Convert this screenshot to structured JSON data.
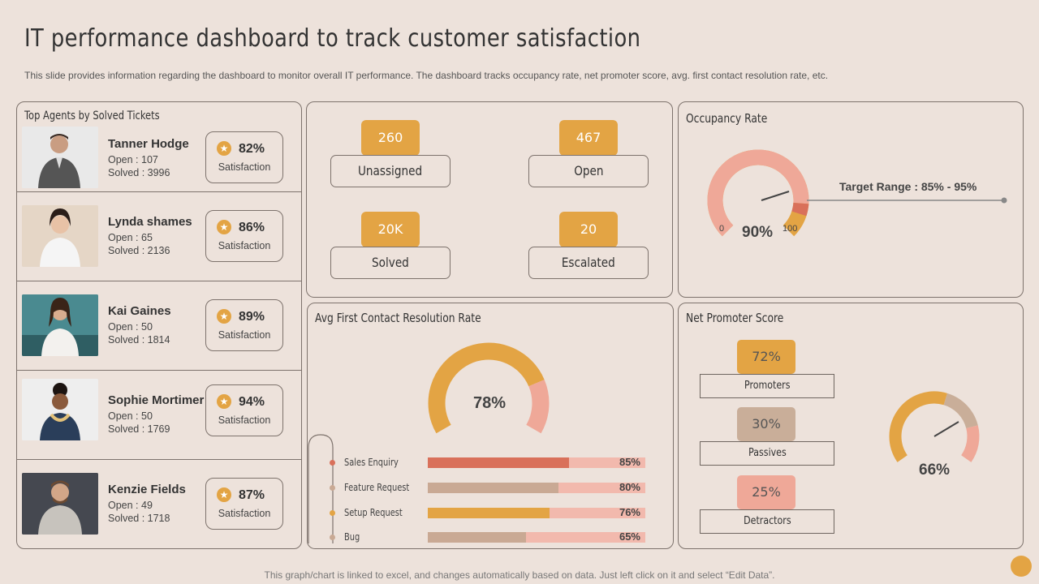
{
  "header": {
    "title": "IT performance dashboard to track customer satisfaction",
    "subtitle": "This slide provides information regarding the dashboard to monitor overall IT performance. The dashboard tracks occupancy rate, net promoter score, avg. first contact resolution rate, etc."
  },
  "agents": {
    "title": "Top Agents  by Solved Tickets",
    "satisfaction_label": "Satisfaction",
    "items": [
      {
        "name": "Tanner Hodge",
        "open": "Open  : 107",
        "solved": "Solved  : 3996",
        "satisfaction": "82%"
      },
      {
        "name": "Lynda shames",
        "open": "Open  : 65",
        "solved": "Solved  : 2136",
        "satisfaction": "86%"
      },
      {
        "name": "Kai Gaines",
        "open": "Open  : 50",
        "solved": "Solved  : 1814",
        "satisfaction": "89%"
      },
      {
        "name": "Sophie Mortimer",
        "open": "Open  : 50",
        "solved": "Solved  : 1769",
        "satisfaction": "94%"
      },
      {
        "name": "Kenzie Fields",
        "open": "Open  : 49",
        "solved": "Solved  : 1718",
        "satisfaction": "87%"
      }
    ]
  },
  "tickets": {
    "unassigned": {
      "value": "260",
      "label": "Unassigned"
    },
    "open": {
      "value": "467",
      "label": "Open"
    },
    "solved": {
      "value": "20K",
      "label": "Solved"
    },
    "escalated": {
      "value": "20",
      "label": "Escalated"
    }
  },
  "occupancy": {
    "title": "Occupancy  Rate",
    "value": "90%",
    "min_label": "0",
    "max_label": "100",
    "target_label": "Target Range : 85% - 95%",
    "level": 0.9
  },
  "fcr": {
    "title": "Avg First  Contact  Resolution  Rate",
    "value": "78%",
    "level": 0.78,
    "bars": [
      {
        "label": "Sales Enquiry",
        "value": 85,
        "pct": "85%",
        "color": "#D9705A",
        "dot": "#D9705A"
      },
      {
        "label": "Feature Request",
        "value": 80,
        "pct": "80%",
        "color": "#C9A994",
        "dot": "#C9A994"
      },
      {
        "label": "Setup Request",
        "value": 76,
        "pct": "76%",
        "color": "#E3A444",
        "dot": "#E3A444"
      },
      {
        "label": "Bug",
        "value": 65,
        "pct": "65%",
        "color": "#C9A994",
        "dot": "#C9A994"
      }
    ]
  },
  "nps": {
    "title": "Net Promoter  Score",
    "value": "66%",
    "promoters": {
      "value": "72%",
      "label": "Promoters",
      "color": "#E3A444"
    },
    "passives": {
      "value": "30%",
      "label": "Passives",
      "color": "#C9AE99"
    },
    "detractors": {
      "value": "25%",
      "label": "Detractors",
      "color": "#EFA898"
    }
  },
  "colors": {
    "accent": "#E3A444",
    "salmon": "#EFA898",
    "tan": "#C9A994",
    "background": "#EDE2DB"
  },
  "footer": "This graph/chart is linked to excel,  and changes automatically based on data. Just left click on it and select “Edit Data”."
}
